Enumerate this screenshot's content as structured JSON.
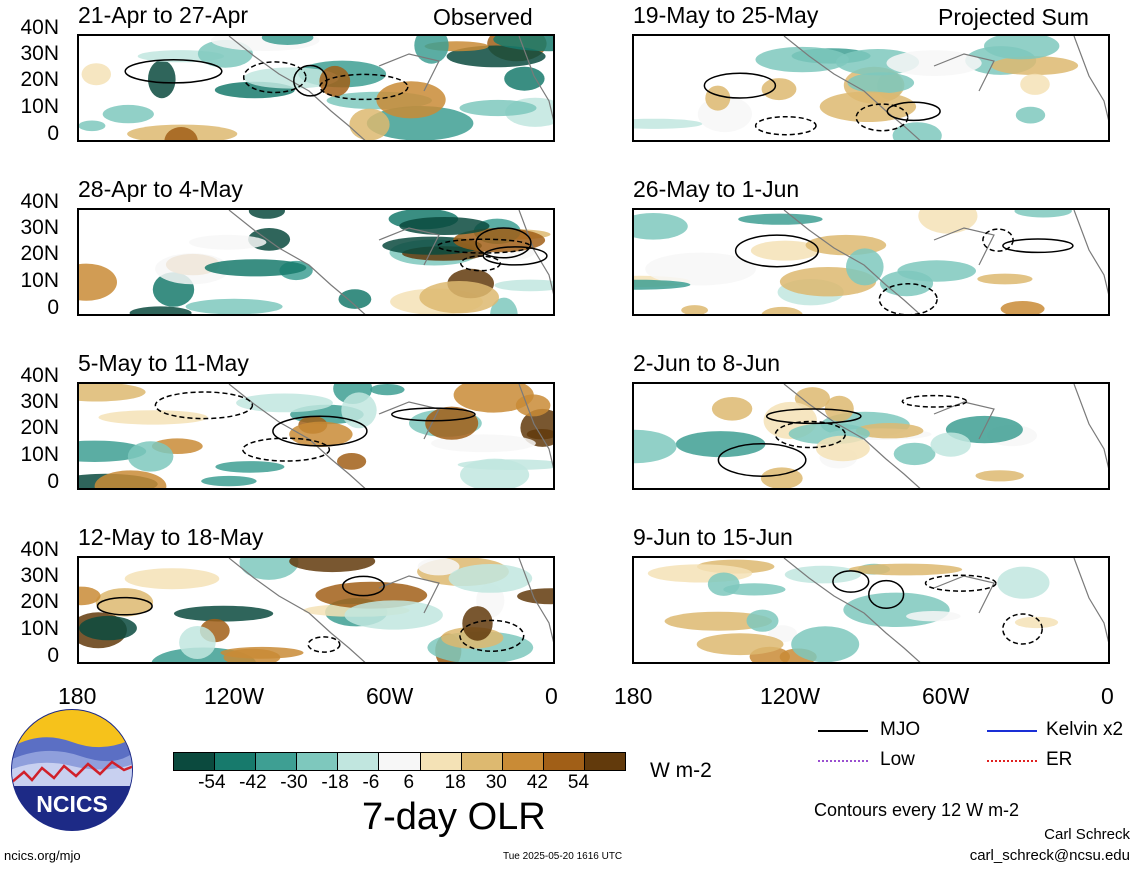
{
  "panels": [
    {
      "col": 0,
      "row": 0,
      "title": "21-Apr to 27-Apr",
      "right_title": "Observed"
    },
    {
      "col": 1,
      "row": 0,
      "title": "19-May to 25-May",
      "right_title": "Projected Sum"
    },
    {
      "col": 0,
      "row": 1,
      "title": "28-Apr to 4-May",
      "right_title": ""
    },
    {
      "col": 1,
      "row": 1,
      "title": "26-May to 1-Jun",
      "right_title": ""
    },
    {
      "col": 0,
      "row": 2,
      "title": "5-May to 11-May",
      "right_title": ""
    },
    {
      "col": 1,
      "row": 2,
      "title": "2-Jun to 8-Jun",
      "right_title": ""
    },
    {
      "col": 0,
      "row": 3,
      "title": "12-May to 18-May",
      "right_title": ""
    },
    {
      "col": 1,
      "row": 3,
      "title": "9-Jun to 15-Jun",
      "right_title": ""
    }
  ],
  "y_axis_labels": [
    "40N",
    "30N",
    "20N",
    "10N",
    "0"
  ],
  "x_axis_labels": [
    "180",
    "120W",
    "60W",
    "0"
  ],
  "colorbar": {
    "colors": [
      "#0b4a3e",
      "#177a6c",
      "#3e9f93",
      "#7ec8bd",
      "#c1e6df",
      "#f7f7f7",
      "#f4e2b6",
      "#ddb970",
      "#c98b36",
      "#a15f17",
      "#623a0c"
    ],
    "tick_labels": [
      "-54",
      "-42",
      "-30",
      "-18",
      "-6",
      "6",
      "18",
      "30",
      "42",
      "54"
    ],
    "units": "W m-2",
    "title": "7-day OLR"
  },
  "legend": {
    "items": [
      {
        "label": "MJO",
        "color": "#000000",
        "style": "solid"
      },
      {
        "label": "Kelvin x2",
        "color": "#1a2fd6",
        "style": "solid"
      },
      {
        "label": "Low",
        "color": "#9a4fd0",
        "style": "dotted"
      },
      {
        "label": "ER",
        "color": "#e02020",
        "style": "dotted"
      }
    ],
    "note": "Contours every 12 W m-2"
  },
  "footer": {
    "logo_text": "NCICS",
    "url": "ncics.org/mjo",
    "timestamp": "Tue 2025-05-20 1616 UTC",
    "author": "Carl Schreck",
    "email": "carl_schreck@ncsu.edu"
  }
}
